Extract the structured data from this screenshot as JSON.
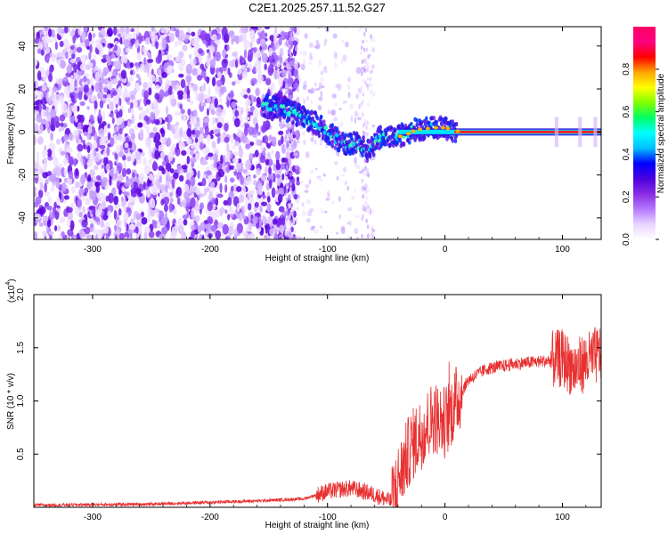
{
  "title": "C2E1.2025.257.11.52.G27",
  "chart_data": [
    {
      "type": "heatmap",
      "xlabel": "Height of straight line (km)",
      "ylabel": "Frequency (Hz)",
      "xlim": [
        -350,
        133
      ],
      "ylim": [
        -50,
        49
      ],
      "xticks": [
        -300,
        -200,
        -100,
        0,
        100
      ],
      "yticks": [
        -40,
        -20,
        0,
        20,
        40
      ],
      "colorbar": {
        "label": "Normalized spectral amplitude",
        "ticks": [
          "0.0",
          "0.2",
          "0.4",
          "0.6",
          "0.8"
        ],
        "range": [
          0,
          1
        ],
        "colors": [
          "#ffffff",
          "#e9d4ff",
          "#b478ff",
          "#8a2be2",
          "#4b00e0",
          "#0000ff",
          "#00bfff",
          "#00ffff",
          "#00ff66",
          "#7fff00",
          "#ffff00",
          "#ffa500",
          "#ff0000",
          "#ff0080",
          "#ff0066"
        ]
      },
      "features": {
        "noise_region_x": [
          -350,
          -135
        ],
        "sparse_noise_region_x": [
          -135,
          -60
        ],
        "signal_track": [
          {
            "x": -155,
            "y": 12
          },
          {
            "x": -140,
            "y": 11
          },
          {
            "x": -125,
            "y": 8
          },
          {
            "x": -110,
            "y": 4
          },
          {
            "x": -95,
            "y": -2
          },
          {
            "x": -85,
            "y": -6
          },
          {
            "x": -75,
            "y": -5
          },
          {
            "x": -65,
            "y": -9
          },
          {
            "x": -55,
            "y": -2
          },
          {
            "x": -40,
            "y": -2
          },
          {
            "x": -25,
            "y": 1
          },
          {
            "x": -10,
            "y": 2
          },
          {
            "x": 0,
            "y": 2
          },
          {
            "x": 10,
            "y": 0
          },
          {
            "x": 133,
            "y": 0
          }
        ]
      }
    },
    {
      "type": "line",
      "xlabel": "Height of straight line (km)",
      "ylabel": "SNR (10 * v/v)",
      "multiplier_label": "(x10",
      "multiplier_exp": "4",
      "multiplier_close": ")",
      "xlim": [
        -350,
        133
      ],
      "ylim": [
        0,
        2.0
      ],
      "xticks": [
        -300,
        -200,
        -100,
        0,
        100
      ],
      "yticks": [
        "0.5",
        "1.0",
        "1.5",
        "2.0"
      ],
      "ytick_values": [
        0.5,
        1.0,
        1.5,
        2.0
      ],
      "color": "#e83030",
      "series_envelope": [
        {
          "x": -350,
          "y": 0.02
        },
        {
          "x": -250,
          "y": 0.03
        },
        {
          "x": -160,
          "y": 0.06
        },
        {
          "x": -120,
          "y": 0.08
        },
        {
          "x": -100,
          "y": 0.15
        },
        {
          "x": -80,
          "y": 0.18
        },
        {
          "x": -60,
          "y": 0.12
        },
        {
          "x": -45,
          "y": 0.05
        },
        {
          "x": -40,
          "y": 0.25
        },
        {
          "x": -30,
          "y": 0.55
        },
        {
          "x": -20,
          "y": 0.7
        },
        {
          "x": -10,
          "y": 0.85
        },
        {
          "x": 0,
          "y": 0.8
        },
        {
          "x": 10,
          "y": 1.0
        },
        {
          "x": 20,
          "y": 1.2
        },
        {
          "x": 35,
          "y": 1.3
        },
        {
          "x": 60,
          "y": 1.35
        },
        {
          "x": 90,
          "y": 1.38
        },
        {
          "x": 100,
          "y": 1.4
        },
        {
          "x": 110,
          "y": 1.3
        },
        {
          "x": 133,
          "y": 1.45
        }
      ]
    }
  ]
}
